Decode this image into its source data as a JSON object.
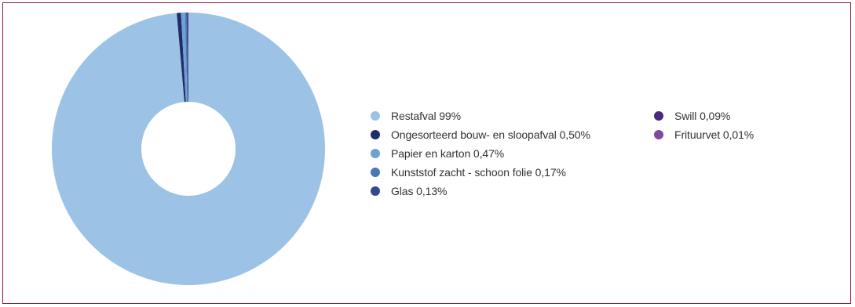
{
  "chart_data": {
    "type": "pie",
    "title": "",
    "categories": [
      "Restafval",
      "Ongesorteerd bouw- en sloopafval",
      "Papier en karton",
      "Kunststof zacht - schoon folie",
      "Glas",
      "Swill",
      "Frituurvet"
    ],
    "values": [
      99,
      0.5,
      0.47,
      0.17,
      0.13,
      0.09,
      0.01
    ],
    "legend": [
      {
        "label": "Restafval 99%",
        "color": "#9cc3e6"
      },
      {
        "label": "Ongesorteerd bouw- en sloopafval 0,50%",
        "color": "#1f2e6b"
      },
      {
        "label": "Papier en karton 0,47%",
        "color": "#6fa1d2"
      },
      {
        "label": "Kunststof zacht - schoon folie 0,17%",
        "color": "#4a78b5"
      },
      {
        "label": "Glas 0,13%",
        "color": "#2f4b8f"
      },
      {
        "label": "Swill 0,09%",
        "color": "#4a2a7a"
      },
      {
        "label": "Frituurvet 0,01%",
        "color": "#7e4c9e"
      }
    ],
    "legend_position": "right",
    "donut": true
  }
}
